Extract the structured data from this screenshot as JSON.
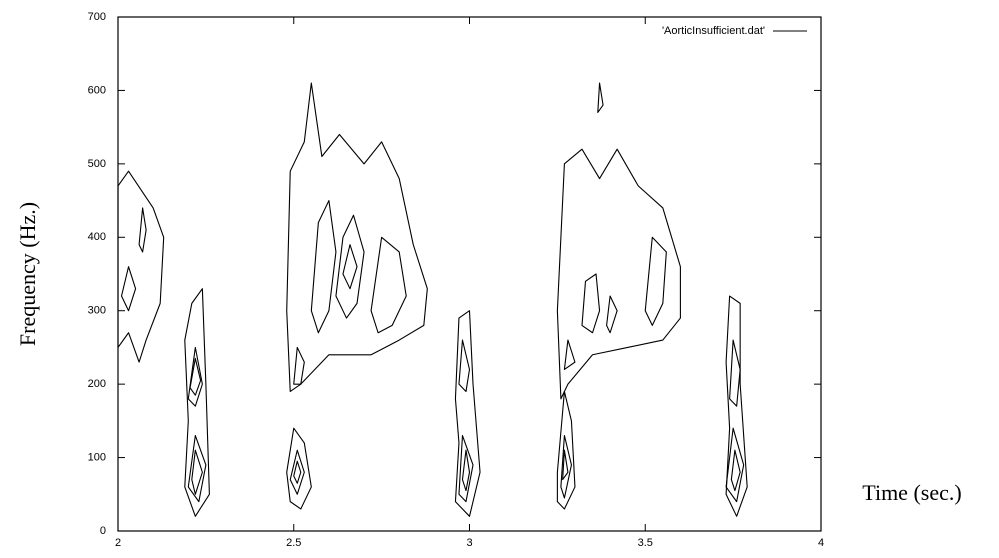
{
  "chart_data": {
    "type": "contour",
    "xlabel": "Time (sec.)",
    "ylabel": "Frequency (Hz.)",
    "legend": {
      "label": "'AorticInsufficient.dat'",
      "position": "top-right"
    },
    "color": "#000000",
    "xlim": [
      2,
      4
    ],
    "xticks": [
      2,
      2.5,
      3,
      3.5,
      4
    ],
    "ylim": [
      0,
      700
    ],
    "yticks": [
      0,
      100,
      200,
      300,
      400,
      500,
      600,
      700
    ],
    "contours": [
      {
        "x": [
          2.0,
          2.0,
          2.03,
          2.1,
          2.13,
          2.12,
          2.08,
          2.06,
          2.03
        ],
        "y": [
          250,
          470,
          490,
          440,
          400,
          310,
          260,
          230,
          270
        ]
      },
      {
        "x": [
          2.01,
          2.03,
          2.05,
          2.03
        ],
        "y": [
          320,
          360,
          330,
          300
        ]
      },
      {
        "x": [
          2.06,
          2.07,
          2.08,
          2.07
        ],
        "y": [
          390,
          440,
          410,
          380
        ]
      },
      {
        "x": [
          2.19,
          2.21,
          2.24,
          2.25,
          2.26,
          2.22,
          2.19,
          2.2
        ],
        "y": [
          260,
          310,
          330,
          200,
          50,
          20,
          60,
          150
        ]
      },
      {
        "x": [
          2.2,
          2.22,
          2.24,
          2.22
        ],
        "y": [
          180,
          250,
          200,
          170
        ]
      },
      {
        "x": [
          2.205,
          2.22,
          2.235,
          2.22
        ],
        "y": [
          195,
          235,
          205,
          185
        ]
      },
      {
        "x": [
          2.2,
          2.22,
          2.25,
          2.23
        ],
        "y": [
          60,
          130,
          90,
          40
        ]
      },
      {
        "x": [
          2.21,
          2.22,
          2.24,
          2.22
        ],
        "y": [
          70,
          110,
          80,
          50
        ]
      },
      {
        "x": [
          2.49,
          2.48,
          2.49,
          2.53,
          2.55,
          2.58,
          2.63,
          2.7,
          2.75,
          2.8,
          2.84,
          2.88,
          2.87,
          2.8,
          2.72,
          2.6,
          2.52
        ],
        "y": [
          190,
          300,
          490,
          530,
          610,
          510,
          540,
          500,
          530,
          480,
          390,
          330,
          280,
          260,
          240,
          240,
          200
        ]
      },
      {
        "x": [
          2.55,
          2.57,
          2.6,
          2.62,
          2.6,
          2.57
        ],
        "y": [
          300,
          420,
          450,
          380,
          300,
          270
        ]
      },
      {
        "x": [
          2.62,
          2.64,
          2.67,
          2.7,
          2.68,
          2.65
        ],
        "y": [
          320,
          400,
          430,
          380,
          310,
          290
        ]
      },
      {
        "x": [
          2.64,
          2.66,
          2.68,
          2.66
        ],
        "y": [
          350,
          390,
          360,
          330
        ]
      },
      {
        "x": [
          2.72,
          2.75,
          2.8,
          2.82,
          2.78,
          2.74
        ],
        "y": [
          300,
          400,
          380,
          320,
          280,
          270
        ]
      },
      {
        "x": [
          2.5,
          2.51,
          2.53,
          2.52
        ],
        "y": [
          200,
          250,
          230,
          200
        ]
      },
      {
        "x": [
          2.48,
          2.5,
          2.53,
          2.55,
          2.52,
          2.49
        ],
        "y": [
          80,
          140,
          120,
          60,
          30,
          40
        ]
      },
      {
        "x": [
          2.49,
          2.51,
          2.53,
          2.51
        ],
        "y": [
          70,
          110,
          80,
          50
        ]
      },
      {
        "x": [
          2.5,
          2.51,
          2.52,
          2.51
        ],
        "y": [
          75,
          95,
          80,
          65
        ]
      },
      {
        "x": [
          2.96,
          2.97,
          3.0,
          3.01,
          3.03,
          3.0,
          2.96,
          2.97
        ],
        "y": [
          180,
          290,
          300,
          200,
          80,
          20,
          40,
          120
        ]
      },
      {
        "x": [
          2.97,
          2.98,
          3.0,
          2.99
        ],
        "y": [
          200,
          260,
          220,
          190
        ]
      },
      {
        "x": [
          2.97,
          2.98,
          3.01,
          2.99
        ],
        "y": [
          50,
          130,
          90,
          40
        ]
      },
      {
        "x": [
          2.98,
          2.99,
          3.0,
          2.99
        ],
        "y": [
          70,
          110,
          80,
          55
        ]
      },
      {
        "x": [
          3.26,
          3.25,
          3.27,
          3.32,
          3.37,
          3.42,
          3.48,
          3.55,
          3.6,
          3.6,
          3.55,
          3.45,
          3.35,
          3.28
        ],
        "y": [
          180,
          300,
          500,
          520,
          480,
          520,
          470,
          440,
          360,
          290,
          260,
          250,
          240,
          200
        ]
      },
      {
        "x": [
          3.32,
          3.33,
          3.36,
          3.37,
          3.35
        ],
        "y": [
          280,
          340,
          350,
          300,
          270
        ]
      },
      {
        "x": [
          3.39,
          3.4,
          3.42,
          3.4
        ],
        "y": [
          280,
          320,
          300,
          270
        ]
      },
      {
        "x": [
          3.27,
          3.28,
          3.3
        ],
        "y": [
          220,
          260,
          230
        ]
      },
      {
        "x": [
          3.5,
          3.52,
          3.56,
          3.55,
          3.52
        ],
        "y": [
          300,
          400,
          380,
          310,
          280
        ]
      },
      {
        "x": [
          3.365,
          3.37,
          3.38
        ],
        "y": [
          570,
          610,
          580
        ]
      },
      {
        "x": [
          3.25,
          3.27,
          3.29,
          3.3,
          3.27,
          3.25
        ],
        "y": [
          80,
          190,
          150,
          60,
          30,
          40
        ]
      },
      {
        "x": [
          3.26,
          3.27,
          3.29,
          3.27
        ],
        "y": [
          60,
          130,
          90,
          45
        ]
      },
      {
        "x": [
          3.265,
          3.27,
          3.28
        ],
        "y": [
          70,
          110,
          80
        ]
      },
      {
        "x": [
          3.73,
          3.74,
          3.77,
          3.77,
          3.79,
          3.76,
          3.73,
          3.74
        ],
        "y": [
          230,
          320,
          310,
          200,
          60,
          20,
          50,
          140
        ]
      },
      {
        "x": [
          3.74,
          3.75,
          3.77,
          3.76
        ],
        "y": [
          180,
          260,
          220,
          170
        ]
      },
      {
        "x": [
          3.73,
          3.75,
          3.78,
          3.76
        ],
        "y": [
          60,
          140,
          90,
          40
        ]
      },
      {
        "x": [
          3.745,
          3.755,
          3.77,
          3.755
        ],
        "y": [
          70,
          110,
          80,
          55
        ]
      }
    ]
  }
}
